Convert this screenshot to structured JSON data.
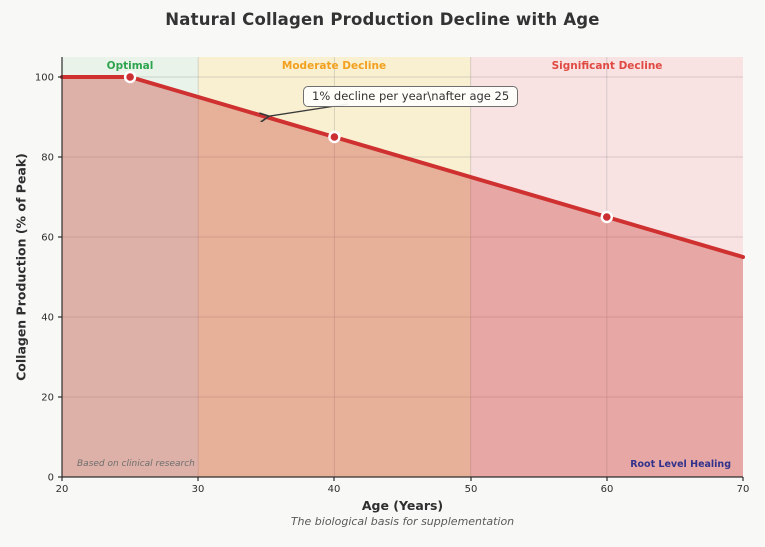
{
  "figure": {
    "title": "Natural Collagen Production Decline with Age",
    "background": "#f8f8f6"
  },
  "chart_data": {
    "type": "line",
    "title": "Natural Collagen Production Decline with Age",
    "xlabel": "Age (Years)",
    "ylabel": "Collagen Production (% of Peak)",
    "subtitle": "The biological basis for supplementation",
    "xlim": [
      20,
      70
    ],
    "ylim": [
      0,
      105
    ],
    "xticks": [
      20,
      30,
      40,
      50,
      60,
      70
    ],
    "yticks": [
      0,
      20,
      40,
      60,
      80,
      100
    ],
    "grid": true,
    "series": [
      {
        "name": "collagen-decline-line",
        "x": [
          20,
          25,
          40,
          60,
          70
        ],
        "y": [
          100,
          100,
          85,
          65,
          55
        ],
        "color": "#cf3030",
        "line_width": 4,
        "marker_points": [
          [
            25,
            100
          ],
          [
            40,
            85
          ],
          [
            60,
            65
          ]
        ],
        "marker_fill": "#cc2f33",
        "marker_edge": "#ffffff",
        "area_fill": "rgba(203, 72, 62, 0.38)"
      }
    ],
    "zones": [
      {
        "label": "Optimal",
        "x_start": 20,
        "x_end": 30,
        "label_color": "#2ea44f",
        "fill": "rgba(144, 201, 144, 0.18)"
      },
      {
        "label": "Moderate Decline",
        "x_start": 30,
        "x_end": 50,
        "label_color": "#f2a01e",
        "fill": "rgba(242, 214, 118, 0.32)"
      },
      {
        "label": "Significant Decline",
        "x_start": 50,
        "x_end": 70,
        "label_color": "#e04a42",
        "fill": "rgba(232, 130, 130, 0.22)"
      }
    ],
    "annotation": {
      "text": "1% decline per year\\nafter age 25",
      "points_to_x": 35.2,
      "points_to_y": 90.2
    },
    "footnote_left": "Based on clinical research",
    "footnote_right": "Root Level Healing",
    "footnote_right_color": "#32328c",
    "grid_color": "rgba(130,130,130,0.28)",
    "axis_color": "#2d2d2d"
  }
}
